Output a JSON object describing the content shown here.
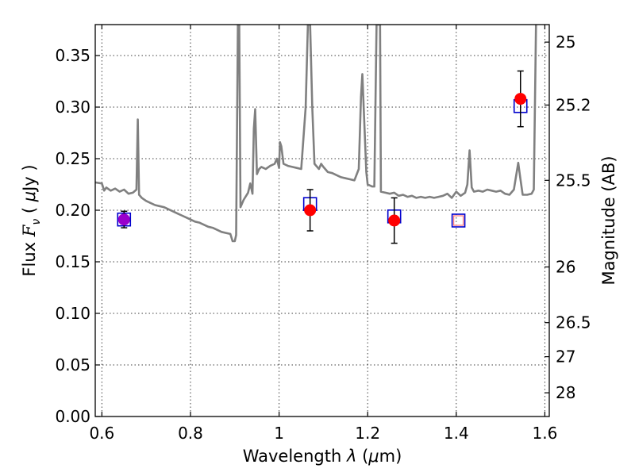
{
  "chart_data": {
    "type": "scatter",
    "xlabel": "Wavelength λ (μm)",
    "xlabel_parts": [
      "Wavelength ",
      "λ",
      " (",
      "μ",
      "m)"
    ],
    "ylabel": "Flux Fν ( μJy )",
    "ylabel_parts": [
      "Flux ",
      "F",
      "ν",
      " ( ",
      "μ",
      "Jy )"
    ],
    "ylabel_right": "Magnitude (AB)",
    "xlim": [
      0.585,
      1.61
    ],
    "ylim": [
      0.0,
      0.38
    ],
    "grid": true,
    "x_ticks": [
      0.6,
      0.8,
      1.0,
      1.2,
      1.4,
      1.6
    ],
    "x_tick_labels": [
      "0.6",
      "0.8",
      "1",
      "1.2",
      "1.4",
      "1.6"
    ],
    "y_ticks": [
      0.0,
      0.05,
      0.1,
      0.15,
      0.2,
      0.25,
      0.3,
      0.35
    ],
    "y_tick_labels": [
      "0.00",
      "0.05",
      "0.10",
      "0.15",
      "0.20",
      "0.25",
      "0.30",
      "0.35"
    ],
    "right_ticks": [
      {
        "flux": 0.363,
        "label": "25"
      },
      {
        "flux": 0.302,
        "label": "25.2"
      },
      {
        "flux": 0.229,
        "label": "25.5"
      },
      {
        "flux": 0.145,
        "label": "26"
      },
      {
        "flux": 0.091,
        "label": "26.5"
      },
      {
        "flux": 0.058,
        "label": "27"
      },
      {
        "flux": 0.023,
        "label": "28"
      }
    ],
    "model_spectrum": {
      "color": "#808080",
      "points": [
        [
          0.585,
          0.227
        ],
        [
          0.6,
          0.226
        ],
        [
          0.605,
          0.219
        ],
        [
          0.61,
          0.222
        ],
        [
          0.62,
          0.219
        ],
        [
          0.63,
          0.221
        ],
        [
          0.64,
          0.218
        ],
        [
          0.65,
          0.22
        ],
        [
          0.66,
          0.216
        ],
        [
          0.67,
          0.217
        ],
        [
          0.678,
          0.22
        ],
        [
          0.681,
          0.288
        ],
        [
          0.684,
          0.215
        ],
        [
          0.69,
          0.212
        ],
        [
          0.7,
          0.209
        ],
        [
          0.71,
          0.207
        ],
        [
          0.72,
          0.205
        ],
        [
          0.73,
          0.204
        ],
        [
          0.74,
          0.203
        ],
        [
          0.75,
          0.201
        ],
        [
          0.76,
          0.199
        ],
        [
          0.77,
          0.197
        ],
        [
          0.78,
          0.195
        ],
        [
          0.79,
          0.193
        ],
        [
          0.8,
          0.191
        ],
        [
          0.81,
          0.189
        ],
        [
          0.82,
          0.188
        ],
        [
          0.83,
          0.186
        ],
        [
          0.84,
          0.184
        ],
        [
          0.85,
          0.183
        ],
        [
          0.86,
          0.181
        ],
        [
          0.87,
          0.179
        ],
        [
          0.88,
          0.178
        ],
        [
          0.89,
          0.177
        ],
        [
          0.895,
          0.17
        ],
        [
          0.9,
          0.17
        ],
        [
          0.903,
          0.176
        ],
        [
          0.907,
          0.38
        ],
        [
          0.91,
          0.38
        ],
        [
          0.913,
          0.203
        ],
        [
          0.92,
          0.21
        ],
        [
          0.93,
          0.217
        ],
        [
          0.935,
          0.226
        ],
        [
          0.94,
          0.216
        ],
        [
          0.943,
          0.279
        ],
        [
          0.946,
          0.298
        ],
        [
          0.95,
          0.235
        ],
        [
          0.955,
          0.24
        ],
        [
          0.96,
          0.242
        ],
        [
          0.97,
          0.24
        ],
        [
          0.98,
          0.243
        ],
        [
          0.99,
          0.245
        ],
        [
          0.995,
          0.25
        ],
        [
          1.0,
          0.241
        ],
        [
          1.002,
          0.266
        ],
        [
          1.005,
          0.262
        ],
        [
          1.01,
          0.245
        ],
        [
          1.02,
          0.243
        ],
        [
          1.03,
          0.242
        ],
        [
          1.04,
          0.241
        ],
        [
          1.05,
          0.24
        ],
        [
          1.06,
          0.3
        ],
        [
          1.065,
          0.38
        ],
        [
          1.07,
          0.38
        ],
        [
          1.075,
          0.3
        ],
        [
          1.08,
          0.245
        ],
        [
          1.09,
          0.24
        ],
        [
          1.095,
          0.245
        ],
        [
          1.1,
          0.242
        ],
        [
          1.11,
          0.237
        ],
        [
          1.12,
          0.236
        ],
        [
          1.13,
          0.234
        ],
        [
          1.14,
          0.232
        ],
        [
          1.15,
          0.231
        ],
        [
          1.16,
          0.23
        ],
        [
          1.17,
          0.229
        ],
        [
          1.18,
          0.24
        ],
        [
          1.185,
          0.31
        ],
        [
          1.188,
          0.332
        ],
        [
          1.192,
          0.29
        ],
        [
          1.197,
          0.237
        ],
        [
          1.2,
          0.225
        ],
        [
          1.21,
          0.223
        ],
        [
          1.215,
          0.223
        ],
        [
          1.22,
          0.38
        ],
        [
          1.228,
          0.38
        ],
        [
          1.23,
          0.218
        ],
        [
          1.24,
          0.217
        ],
        [
          1.25,
          0.216
        ],
        [
          1.26,
          0.217
        ],
        [
          1.27,
          0.214
        ],
        [
          1.28,
          0.215
        ],
        [
          1.29,
          0.213
        ],
        [
          1.3,
          0.214
        ],
        [
          1.31,
          0.212
        ],
        [
          1.32,
          0.213
        ],
        [
          1.33,
          0.212
        ],
        [
          1.34,
          0.213
        ],
        [
          1.35,
          0.212
        ],
        [
          1.36,
          0.213
        ],
        [
          1.37,
          0.214
        ],
        [
          1.38,
          0.216
        ],
        [
          1.39,
          0.212
        ],
        [
          1.4,
          0.218
        ],
        [
          1.41,
          0.214
        ],
        [
          1.42,
          0.217
        ],
        [
          1.425,
          0.225
        ],
        [
          1.43,
          0.258
        ],
        [
          1.435,
          0.222
        ],
        [
          1.44,
          0.218
        ],
        [
          1.45,
          0.219
        ],
        [
          1.46,
          0.218
        ],
        [
          1.47,
          0.22
        ],
        [
          1.48,
          0.219
        ],
        [
          1.49,
          0.218
        ],
        [
          1.5,
          0.219
        ],
        [
          1.51,
          0.216
        ],
        [
          1.52,
          0.215
        ],
        [
          1.53,
          0.22
        ],
        [
          1.54,
          0.246
        ],
        [
          1.545,
          0.23
        ],
        [
          1.55,
          0.215
        ],
        [
          1.56,
          0.215
        ],
        [
          1.57,
          0.216
        ],
        [
          1.575,
          0.22
        ],
        [
          1.58,
          0.38
        ]
      ]
    },
    "model_photometry": {
      "color": "#0000cc",
      "marker": "open-square",
      "points": [
        {
          "x": 0.65,
          "y": 0.191
        },
        {
          "x": 1.07,
          "y": 0.206
        },
        {
          "x": 1.26,
          "y": 0.194
        },
        {
          "x": 1.405,
          "y": 0.19
        },
        {
          "x": 1.545,
          "y": 0.301
        }
      ]
    },
    "observed": {
      "color": "#ff0000",
      "marker": "filled-circle",
      "points": [
        {
          "x": 0.65,
          "y": 0.191,
          "yerr": 0.008,
          "color": "#9900cc"
        },
        {
          "x": 1.07,
          "y": 0.2,
          "yerr": 0.02
        },
        {
          "x": 1.26,
          "y": 0.19,
          "yerr": 0.022
        },
        {
          "x": 1.545,
          "y": 0.308,
          "yerr": 0.027
        }
      ]
    },
    "upper_limit": {
      "color": "#ff8080",
      "marker": "open-square",
      "x": 1.405,
      "y": 0.19
    }
  }
}
